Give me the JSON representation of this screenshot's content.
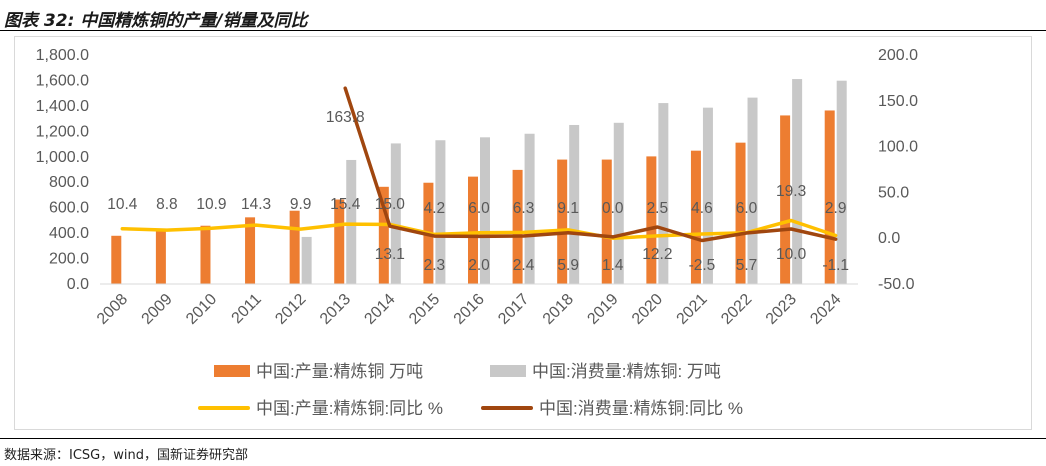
{
  "header": {
    "title": "图表 32:  中国精炼铜的产量/销量及同比"
  },
  "footer": {
    "source": "数据来源：ICSG，wind，国新证券研究部"
  },
  "chart_data": {
    "type": "bar",
    "title": "中国精炼铜的产量/销量及同比",
    "categories": [
      "2008",
      "2009",
      "2010",
      "2011",
      "2012",
      "2013",
      "2014",
      "2015",
      "2016",
      "2017",
      "2018",
      "2019",
      "2020",
      "2021",
      "2022",
      "2023",
      "2024"
    ],
    "series": [
      {
        "name": "中国:产量:精炼铜 万吨",
        "kind": "bar",
        "axis": "left",
        "color": "#ED7D31",
        "values": [
          379,
          413,
          458,
          524,
          576,
          664,
          764,
          796,
          844,
          897,
          978,
          978,
          1003,
          1048,
          1111,
          1325,
          1364
        ]
      },
      {
        "name": "中国:消费量:精炼铜: 万吨",
        "kind": "bar",
        "axis": "left",
        "color": "#C8C8C8",
        "values": [
          null,
          null,
          null,
          null,
          370,
          975,
          1105,
          1130,
          1153,
          1181,
          1250,
          1267,
          1422,
          1386,
          1465,
          1611,
          1598
        ]
      },
      {
        "name": "中国:产量:精炼铜:同比 %",
        "kind": "line",
        "axis": "right",
        "color": "#FFC000",
        "values": [
          10.4,
          8.8,
          10.9,
          14.3,
          9.9,
          15.4,
          15.0,
          4.2,
          6.0,
          6.3,
          9.1,
          0.0,
          2.5,
          4.6,
          6.0,
          19.3,
          2.9
        ]
      },
      {
        "name": "中国:消费量:精炼铜:同比 %",
        "kind": "line",
        "axis": "right",
        "color": "#A0460F",
        "values": [
          null,
          null,
          null,
          null,
          null,
          163.8,
          13.1,
          2.3,
          2.0,
          2.4,
          5.9,
          1.4,
          12.2,
          -2.5,
          5.7,
          10.0,
          -1.1
        ]
      }
    ],
    "y_left": {
      "min": 0,
      "max": 1800,
      "step": 200,
      "tick_labels": [
        "0.0",
        "200.0",
        "400.0",
        "600.0",
        "800.0",
        "1,000.0",
        "1,200.0",
        "1,400.0",
        "1,600.0",
        "1,800.0"
      ]
    },
    "y_right": {
      "min": -50,
      "max": 200,
      "step": 50,
      "tick_labels": [
        "-50.0",
        "0.0",
        "50.0",
        "100.0",
        "150.0",
        "200.0"
      ]
    },
    "data_labels": {
      "production_yoy": [
        "10.4",
        "8.8",
        "10.9",
        "14.3",
        "9.9",
        "15.4",
        "15.0",
        "4.2",
        "6.0",
        "6.3",
        "9.1",
        "0.0",
        "2.5",
        "4.6",
        "6.0",
        "19.3",
        "2.9"
      ],
      "consumption_yoy": [
        "",
        "",
        "",
        "",
        "",
        "163.8",
        "13.1",
        "2.3",
        "2.0",
        "2.4",
        "5.9",
        "1.4",
        "12.2",
        "-2.5",
        "5.7",
        "10.0",
        "-1.1"
      ]
    },
    "legend_position": "bottom",
    "grid": false
  }
}
